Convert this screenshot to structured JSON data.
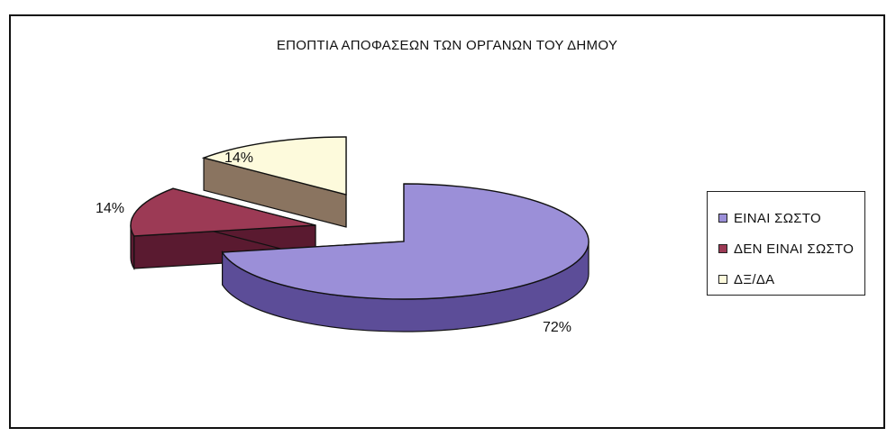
{
  "chart_data": {
    "type": "pie",
    "title": "ΕΠΟΠΤΙΑ ΑΠΟΦΑΣΕΩΝ ΤΩΝ ΟΡΓΑΝΩΝ ΤΟΥ ΔΗΜΟΥ",
    "categories": [
      "ΕΙΝΑΙ ΣΩΣΤΟ",
      "ΔΕΝ ΕΙΝΑΙ ΣΩΣΤΟ",
      "ΔΞ/ΔΑ"
    ],
    "values": [
      72,
      14,
      14
    ],
    "data_labels": [
      "72%",
      "14%",
      "14%"
    ],
    "colors": [
      "#9b8fd8",
      "#9c3a55",
      "#fdfadc"
    ],
    "side_colors": [
      "#5c4d98",
      "#5a1a30",
      "#8a7460"
    ],
    "style": "3d-exploded",
    "legend_position": "right"
  }
}
